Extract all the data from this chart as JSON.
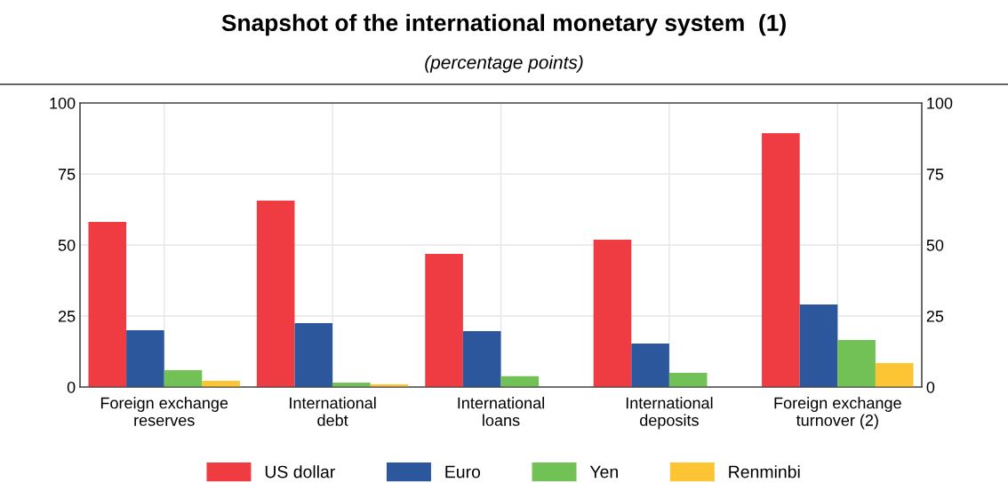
{
  "chart_data": {
    "type": "bar",
    "title": "Snapshot of the international monetary system  (1)",
    "subtitle": "(percentage points)",
    "categories": [
      "Foreign exchange\nreserves",
      "International\ndebt",
      "International\nloans",
      "International\ndeposits",
      "Foreign exchange\nturnover (2)"
    ],
    "series": [
      {
        "name": "US dollar",
        "color": "#ef3b42",
        "values": [
          58.1,
          65.6,
          46.9,
          51.9,
          89.4
        ]
      },
      {
        "name": "Euro",
        "color": "#2d579d",
        "values": [
          20,
          22.5,
          19.7,
          15.3,
          29.1
        ]
      },
      {
        "name": "Yen",
        "color": "#72c156",
        "values": [
          5.9,
          1.6,
          3.8,
          5,
          16.6
        ]
      },
      {
        "name": "Renminbi",
        "color": "#fdc533",
        "values": [
          2.2,
          0.9,
          null,
          null,
          8.4
        ]
      }
    ],
    "ylim": [
      0,
      100
    ],
    "yticks": [
      0,
      25,
      50,
      75,
      100
    ],
    "y2lim": [
      0,
      100
    ],
    "y2ticks": [
      0,
      25,
      50,
      75,
      100
    ],
    "grid": true,
    "legend": "bottom"
  }
}
